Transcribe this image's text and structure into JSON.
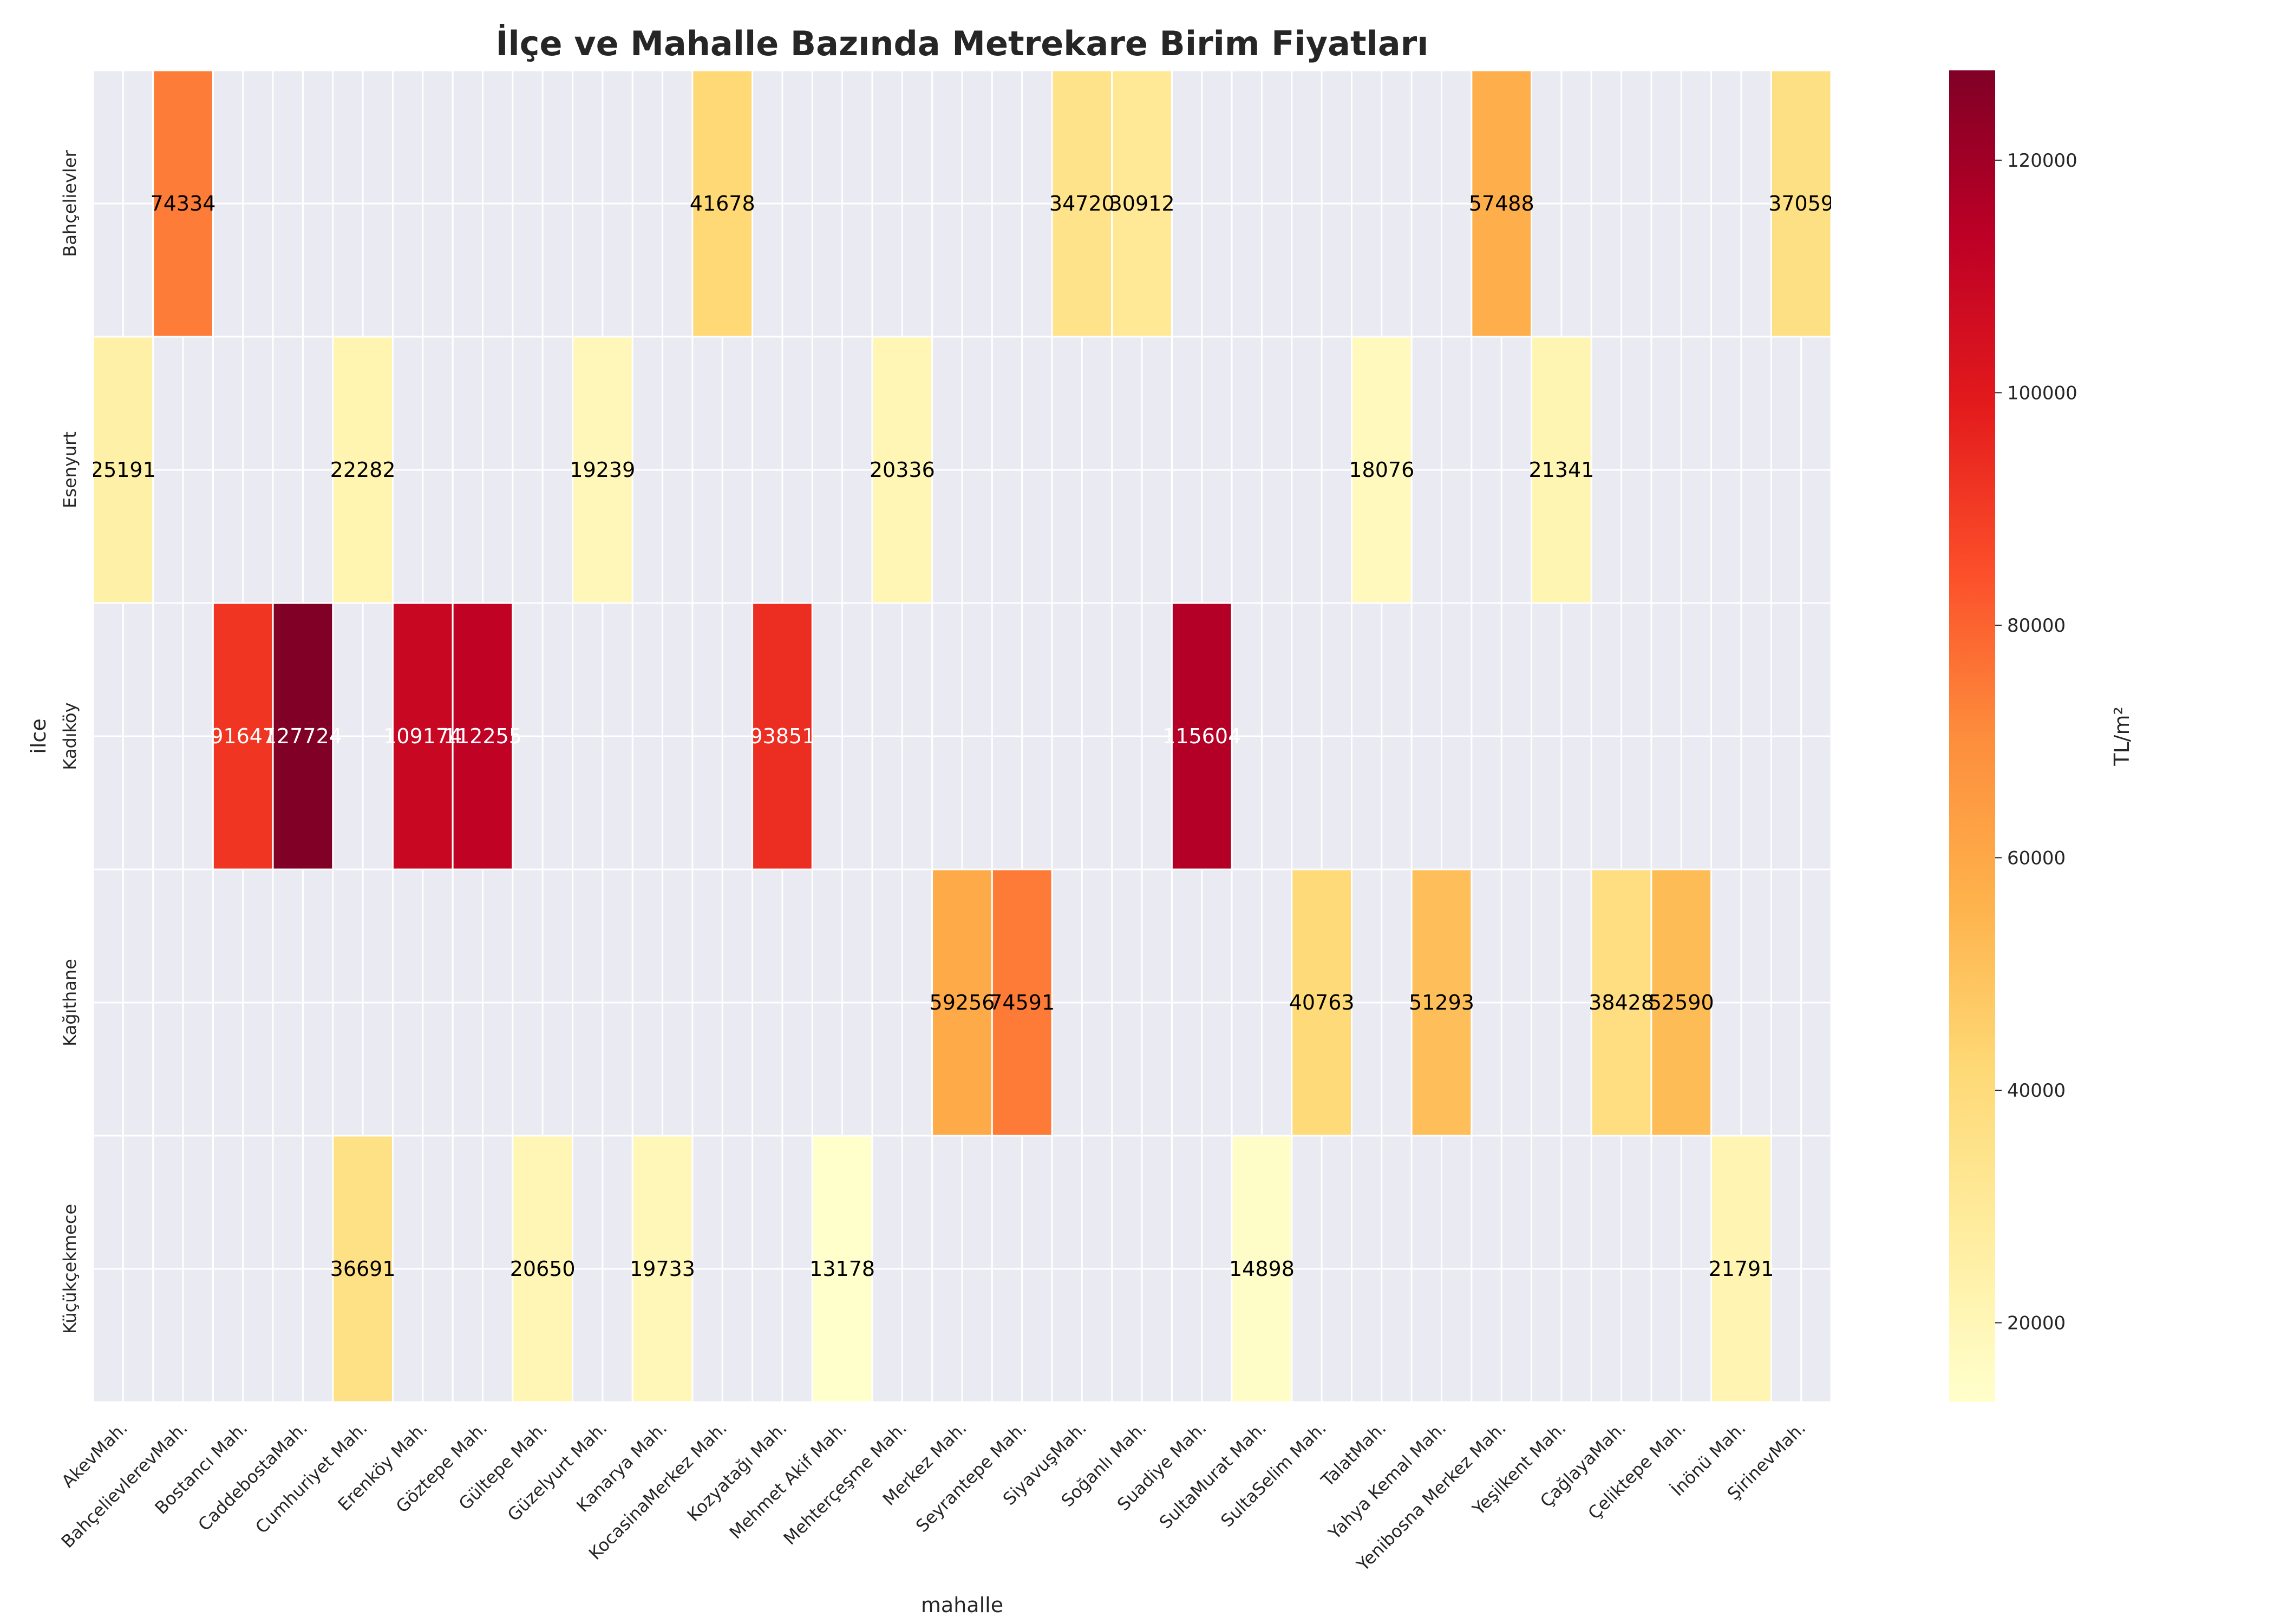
{
  "chart_data": {
    "type": "heatmap",
    "title": "İlçe ve Mahalle Bazında Metrekare Birim Fiyatları",
    "xlabel": "mahalle",
    "ylabel": "ilce",
    "colorbar_label": "TL/m²",
    "colorbar_ticks": [
      20000,
      40000,
      60000,
      80000,
      100000,
      120000
    ],
    "colorbar_tick_labels": [
      "20000",
      "40000",
      "60000",
      "80000",
      "100000",
      "120000"
    ],
    "vmin": 13178,
    "vmax": 127724,
    "colormap": "YlOrRd",
    "colormap_stops": [
      "#ffffcc",
      "#ffeda0",
      "#fed976",
      "#feb24c",
      "#fd8d3c",
      "#fc4e2a",
      "#e31a1c",
      "#bd0026",
      "#800026"
    ],
    "background_color": "#eaeaf2",
    "x_categories": [
      "AkevMah.",
      "BahçelievlerevMah.",
      "Bostancı Mah.",
      "CaddebostaMah.",
      "Cumhuriyet Mah.",
      "Erenköy Mah.",
      "Göztepe Mah.",
      "Gültepe Mah.",
      "Güzelyurt Mah.",
      "Kanarya Mah.",
      "KocasinaMerkez Mah.",
      "Kozyatağı Mah.",
      "Mehmet Akif Mah.",
      "Mehterçeşme Mah.",
      "Merkez Mah.",
      "Seyrantepe Mah.",
      "SiyavuşMah.",
      "Soğanlı Mah.",
      "Suadiye Mah.",
      "SultaMurat Mah.",
      "SultaSelim Mah.",
      "TalatMah.",
      "Yahya Kemal Mah.",
      "Yenibosna Merkez Mah.",
      "Yeşilkent Mah.",
      "ÇağlayaMah.",
      "Çeliktepe Mah.",
      "İnönü Mah.",
      "ŞirinevMah."
    ],
    "y_categories": [
      "Bahçelievler",
      "Esenyurt",
      "Kadıköy",
      "Kağıthane",
      "Küçükçekmece"
    ],
    "cells": [
      {
        "row": 0,
        "col": 1,
        "value": 74334,
        "label": "74334"
      },
      {
        "row": 0,
        "col": 10,
        "value": 41678,
        "label": "41678"
      },
      {
        "row": 0,
        "col": 16,
        "value": 34720,
        "label": "34720"
      },
      {
        "row": 0,
        "col": 17,
        "value": 30912,
        "label": "30912"
      },
      {
        "row": 0,
        "col": 23,
        "value": 57488,
        "label": "57488"
      },
      {
        "row": 0,
        "col": 28,
        "value": 37059,
        "label": "37059"
      },
      {
        "row": 1,
        "col": 0,
        "value": 25191,
        "label": "25191"
      },
      {
        "row": 1,
        "col": 4,
        "value": 22282,
        "label": "22282"
      },
      {
        "row": 1,
        "col": 8,
        "value": 19239,
        "label": "19239"
      },
      {
        "row": 1,
        "col": 13,
        "value": 20336,
        "label": "20336"
      },
      {
        "row": 1,
        "col": 21,
        "value": 18076,
        "label": "18076"
      },
      {
        "row": 1,
        "col": 24,
        "value": 21341,
        "label": "21341"
      },
      {
        "row": 2,
        "col": 2,
        "value": 91647,
        "label": "91647"
      },
      {
        "row": 2,
        "col": 3,
        "value": 127724,
        "label": "127724"
      },
      {
        "row": 2,
        "col": 5,
        "value": 109174,
        "label": "109174"
      },
      {
        "row": 2,
        "col": 6,
        "value": 112255,
        "label": "112255"
      },
      {
        "row": 2,
        "col": 11,
        "value": 93851,
        "label": "93851"
      },
      {
        "row": 2,
        "col": 18,
        "value": 115604,
        "label": "115604"
      },
      {
        "row": 3,
        "col": 14,
        "value": 59256,
        "label": "59256"
      },
      {
        "row": 3,
        "col": 15,
        "value": 74591,
        "label": "74591"
      },
      {
        "row": 3,
        "col": 20,
        "value": 40763,
        "label": "40763"
      },
      {
        "row": 3,
        "col": 22,
        "value": 51293,
        "label": "51293"
      },
      {
        "row": 3,
        "col": 25,
        "value": 38428,
        "label": "38428"
      },
      {
        "row": 3,
        "col": 26,
        "value": 52590,
        "label": "52590"
      },
      {
        "row": 4,
        "col": 4,
        "value": 36691,
        "label": "36691"
      },
      {
        "row": 4,
        "col": 7,
        "value": 20650,
        "label": "20650"
      },
      {
        "row": 4,
        "col": 9,
        "value": 19733,
        "label": "19733"
      },
      {
        "row": 4,
        "col": 12,
        "value": 13178,
        "label": "13178"
      },
      {
        "row": 4,
        "col": 19,
        "value": 14898,
        "label": "14898"
      },
      {
        "row": 4,
        "col": 27,
        "value": 21791,
        "label": "21791"
      }
    ]
  }
}
